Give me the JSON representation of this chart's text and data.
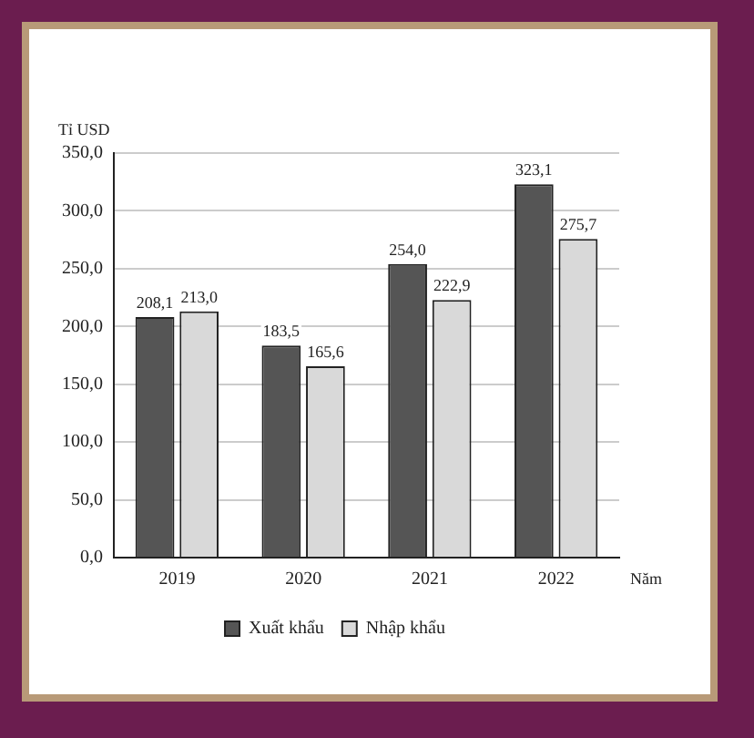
{
  "chart_data": {
    "type": "bar",
    "ylabel": "Tỉ USD",
    "xlabel": "Năm",
    "categories": [
      "2019",
      "2020",
      "2021",
      "2022"
    ],
    "series": [
      {
        "name": "Xuất khẩu",
        "color": "#555555",
        "values": [
          208.1,
          183.5,
          254.0,
          323.1
        ],
        "value_labels": [
          "208,1",
          "183,5",
          "254,0",
          "323,1"
        ]
      },
      {
        "name": "Nhập khẩu",
        "color": "#d9d9d9",
        "values": [
          213.0,
          165.6,
          222.9,
          275.7
        ],
        "value_labels": [
          "213,0",
          "165,6",
          "222,9",
          "275,7"
        ]
      }
    ],
    "ylim": [
      0,
      350
    ],
    "yticks": [
      {
        "value": 0,
        "label": "0,0"
      },
      {
        "value": 50,
        "label": "50,0"
      },
      {
        "value": 100,
        "label": "100,0"
      },
      {
        "value": 150,
        "label": "150,0"
      },
      {
        "value": 200,
        "label": "200,0"
      },
      {
        "value": 250,
        "label": "250,0"
      },
      {
        "value": 300,
        "label": "300,0"
      },
      {
        "value": 350,
        "label": "350,0"
      }
    ],
    "grid": "y",
    "legend": "bottom"
  }
}
